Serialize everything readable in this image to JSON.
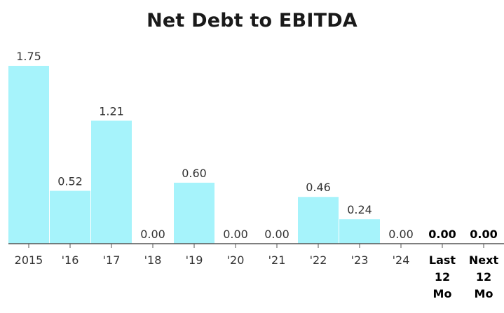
{
  "chart_data": {
    "type": "bar",
    "title": "Net Debt to EBITDA",
    "categories": [
      "2015",
      "'16",
      "'17",
      "'18",
      "'19",
      "'20",
      "'21",
      "'22",
      "'23",
      "'24",
      "Last 12 Mo",
      "Next 12 Mo"
    ],
    "category_lines": [
      [
        "2015"
      ],
      [
        "'16"
      ],
      [
        "'17"
      ],
      [
        "'18"
      ],
      [
        "'19"
      ],
      [
        "'20"
      ],
      [
        "'21"
      ],
      [
        "'22"
      ],
      [
        "'23"
      ],
      [
        "'24"
      ],
      [
        "Last",
        "12",
        "Mo"
      ],
      [
        "Next",
        "12",
        "Mo"
      ]
    ],
    "values": [
      1.75,
      0.52,
      1.21,
      0.0,
      0.6,
      0.0,
      0.0,
      0.46,
      0.24,
      0.0,
      0.0,
      0.0
    ],
    "value_labels": [
      "1.75",
      "0.52",
      "1.21",
      "0.00",
      "0.60",
      "0.00",
      "0.00",
      "0.46",
      "0.24",
      "0.00",
      "0.00",
      "0.00"
    ],
    "bold_categories": [
      "Last 12 Mo",
      "Next 12 Mo"
    ],
    "xlabel": "",
    "ylabel": "",
    "ylim": [
      0,
      1.75
    ],
    "grid": false,
    "colors": {
      "bar": "#a6f3fb",
      "axis": "#555555"
    }
  }
}
